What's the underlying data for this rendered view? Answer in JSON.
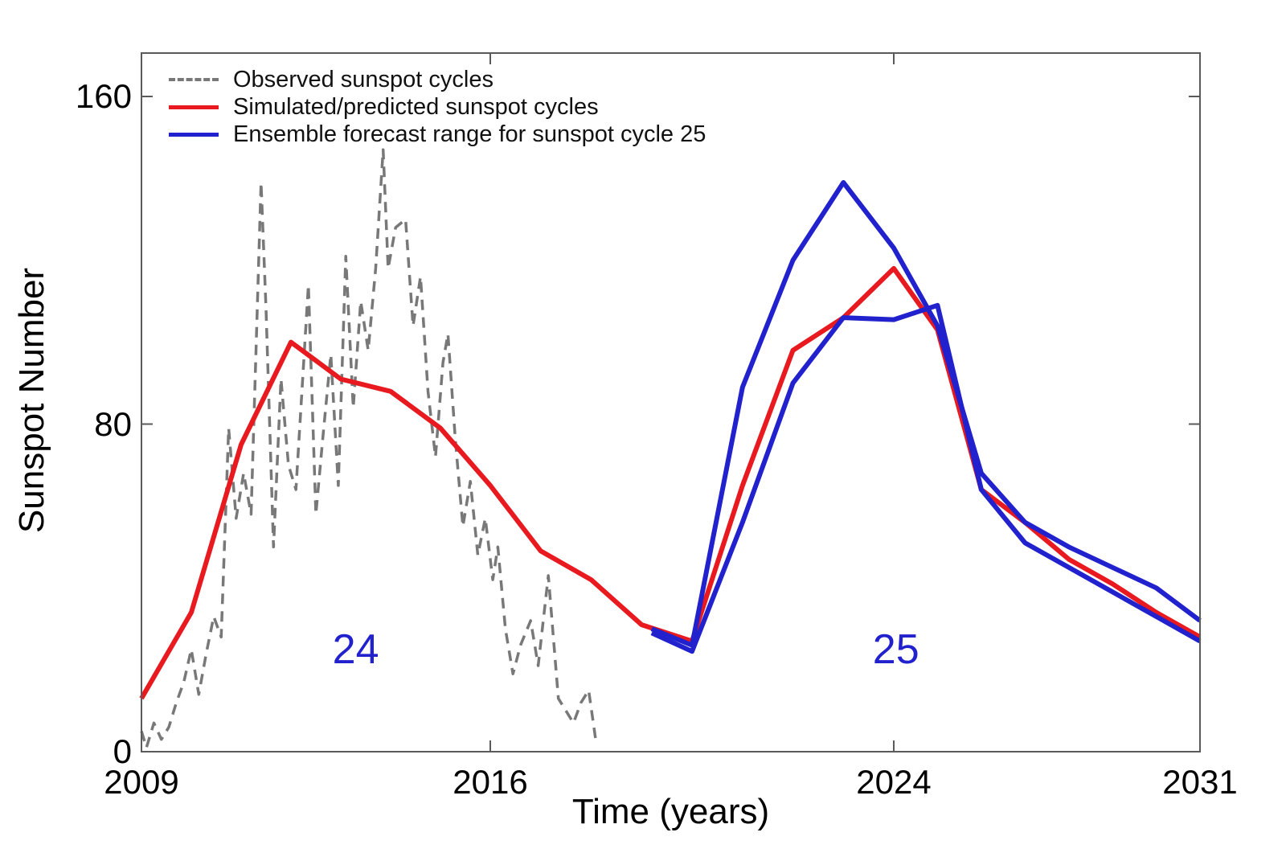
{
  "figure": {
    "background": "#ffffff",
    "axis_color": "#5a5a5a",
    "text_color": "#000000"
  },
  "legend": {
    "position": "top-left-inside",
    "items": [
      {
        "label": "Observed sunspot cycles",
        "color": "#787878",
        "dashed": true
      },
      {
        "label": "Simulated/predicted sunspot cycles",
        "color": "#e8191f",
        "dashed": false
      },
      {
        "label": "Ensemble forecast range for sunspot cycle 25",
        "color": "#2121cd",
        "dashed": false
      }
    ]
  },
  "chart_data": {
    "type": "line",
    "title": "",
    "xlabel": "Time (years)",
    "ylabel": "Sunspot Number",
    "xlim": [
      2009,
      2031
    ],
    "ylim": [
      0,
      170
    ],
    "xticks": [
      2009,
      2016,
      2024,
      2031
    ],
    "yticks": [
      0,
      80,
      160
    ],
    "grid": false,
    "annotations": [
      {
        "text": "24",
        "x": 2013.3,
        "y": 25,
        "color": "#2121cd"
      },
      {
        "text": "25",
        "x": 2024.05,
        "y": 25,
        "color": "#2121cd"
      }
    ],
    "series": [
      {
        "name": "Observed sunspot cycles",
        "color": "#787878",
        "style": "dashed",
        "width": 3.5,
        "points": [
          [
            2009.0,
            5
          ],
          [
            2009.1,
            1
          ],
          [
            2009.25,
            7
          ],
          [
            2009.4,
            3
          ],
          [
            2009.55,
            6
          ],
          [
            2009.7,
            12
          ],
          [
            2009.85,
            17
          ],
          [
            2010.0,
            25
          ],
          [
            2010.15,
            14
          ],
          [
            2010.3,
            24
          ],
          [
            2010.45,
            33
          ],
          [
            2010.6,
            28
          ],
          [
            2010.75,
            79
          ],
          [
            2010.9,
            57
          ],
          [
            2011.05,
            68
          ],
          [
            2011.2,
            58
          ],
          [
            2011.4,
            139
          ],
          [
            2011.5,
            108
          ],
          [
            2011.65,
            50
          ],
          [
            2011.8,
            91
          ],
          [
            2011.95,
            70
          ],
          [
            2012.1,
            64
          ],
          [
            2012.35,
            114
          ],
          [
            2012.5,
            58
          ],
          [
            2012.65,
            78
          ],
          [
            2012.8,
            97
          ],
          [
            2012.95,
            65
          ],
          [
            2013.1,
            121
          ],
          [
            2013.25,
            84
          ],
          [
            2013.4,
            110
          ],
          [
            2013.55,
            98
          ],
          [
            2013.7,
            118
          ],
          [
            2013.85,
            147
          ],
          [
            2013.95,
            118
          ],
          [
            2014.1,
            128
          ],
          [
            2014.3,
            130
          ],
          [
            2014.45,
            104
          ],
          [
            2014.6,
            116
          ],
          [
            2014.75,
            88
          ],
          [
            2014.9,
            72
          ],
          [
            2015.05,
            95
          ],
          [
            2015.15,
            102
          ],
          [
            2015.3,
            76
          ],
          [
            2015.45,
            55
          ],
          [
            2015.6,
            66
          ],
          [
            2015.75,
            48
          ],
          [
            2015.9,
            57
          ],
          [
            2016.05,
            42
          ],
          [
            2016.15,
            50
          ],
          [
            2016.3,
            30
          ],
          [
            2016.45,
            19
          ],
          [
            2016.6,
            26
          ],
          [
            2016.8,
            32
          ],
          [
            2016.95,
            21
          ],
          [
            2017.15,
            43
          ],
          [
            2017.35,
            13
          ],
          [
            2017.5,
            10
          ],
          [
            2017.65,
            7
          ],
          [
            2017.8,
            12
          ],
          [
            2017.95,
            15
          ],
          [
            2018.1,
            2
          ]
        ]
      },
      {
        "name": "Simulated/predicted sunspot cycles",
        "color": "#e8191f",
        "style": "solid",
        "width": 6,
        "points": [
          [
            2009,
            13
          ],
          [
            2010,
            34
          ],
          [
            2011,
            75
          ],
          [
            2012,
            100
          ],
          [
            2013,
            91
          ],
          [
            2014,
            88
          ],
          [
            2015,
            79
          ],
          [
            2016,
            65
          ],
          [
            2017,
            49
          ],
          [
            2018,
            42
          ],
          [
            2019,
            31
          ],
          [
            2020,
            27
          ],
          [
            2021,
            65
          ],
          [
            2022,
            98
          ],
          [
            2023,
            106
          ],
          [
            2024,
            118
          ],
          [
            2025,
            103
          ],
          [
            2026,
            64
          ],
          [
            2027,
            56
          ],
          [
            2028,
            47
          ],
          [
            2029,
            41
          ],
          [
            2030,
            34
          ],
          [
            2031,
            28
          ]
        ]
      },
      {
        "name": "Ensemble forecast range for sunspot cycle 25 (upper)",
        "color": "#2121cd",
        "style": "solid",
        "width": 6,
        "points": [
          [
            2019.2,
            30
          ],
          [
            2020,
            26
          ],
          [
            2021,
            89
          ],
          [
            2022,
            120
          ],
          [
            2023,
            139
          ],
          [
            2024,
            123
          ],
          [
            2025,
            104
          ],
          [
            2026,
            68
          ],
          [
            2027,
            56
          ],
          [
            2028,
            50
          ],
          [
            2029,
            45
          ],
          [
            2030,
            40
          ],
          [
            2031,
            32
          ]
        ]
      },
      {
        "name": "Ensemble forecast range for sunspot cycle 25 (lower)",
        "color": "#2121cd",
        "style": "solid",
        "width": 6,
        "points": [
          [
            2019.2,
            29
          ],
          [
            2020,
            24.5
          ],
          [
            2021,
            56
          ],
          [
            2022,
            90
          ],
          [
            2023,
            106
          ],
          [
            2024,
            105.5
          ],
          [
            2025,
            109
          ],
          [
            2026,
            64
          ],
          [
            2027,
            51
          ],
          [
            2028,
            45
          ],
          [
            2029,
            39
          ],
          [
            2030,
            33
          ],
          [
            2031,
            27
          ]
        ]
      }
    ]
  }
}
